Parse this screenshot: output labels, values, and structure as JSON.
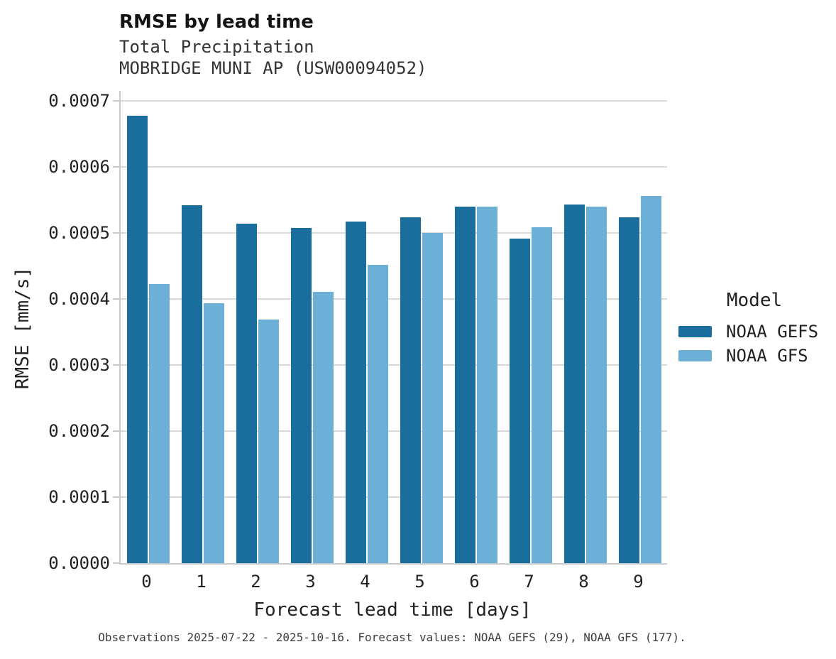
{
  "header": {
    "title": "RMSE by lead time",
    "subtitle_line1": "Total Precipitation",
    "subtitle_line2": "MOBRIDGE MUNI AP (USW00094052)"
  },
  "legend": {
    "title": "Model"
  },
  "footnote": "Observations 2025-07-22 - 2025-10-16. Forecast values: NOAA GEFS (29), NOAA GFS (177).",
  "chart_data": {
    "type": "bar",
    "title": "RMSE by lead time",
    "subtitle": [
      "Total Precipitation",
      "MOBRIDGE MUNI AP (USW00094052)"
    ],
    "xlabel": "Forecast lead time [days]",
    "ylabel": "RMSE [mm/s]",
    "categories": [
      "0",
      "1",
      "2",
      "3",
      "4",
      "5",
      "6",
      "7",
      "8",
      "9"
    ],
    "series": [
      {
        "name": "NOAA GEFS",
        "color": "#1a6e9e",
        "values": [
          0.000678,
          0.000542,
          0.000514,
          0.000508,
          0.000517,
          0.000524,
          0.00054,
          0.000492,
          0.000543,
          0.000524
        ]
      },
      {
        "name": "NOAA GFS",
        "color": "#6cb0d8",
        "values": [
          0.000423,
          0.000394,
          0.000369,
          0.000411,
          0.000452,
          0.0005,
          0.00054,
          0.000509,
          0.00054,
          0.000556
        ]
      }
    ],
    "ylim": [
      0,
      0.0007
    ],
    "yticks": [
      0,
      0.0001,
      0.0002,
      0.0003,
      0.0004,
      0.0005,
      0.0006,
      0.0007
    ],
    "ytick_labels": [
      "0.0000",
      "0.0001",
      "0.0002",
      "0.0003",
      "0.0004",
      "0.0005",
      "0.0006",
      "0.0007"
    ],
    "grid": "horizontal",
    "legend_title": "Model",
    "legend_position": "right"
  }
}
